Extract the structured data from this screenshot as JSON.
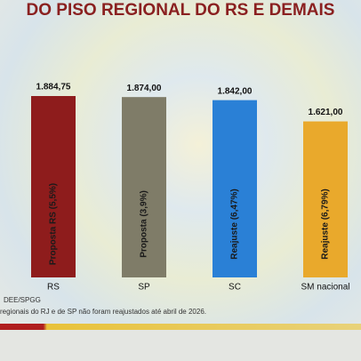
{
  "chart_data": {
    "type": "bar",
    "title": "DO PISO REGIONAL DO RS E DEMAIS",
    "categories": [
      "RS",
      "SP",
      "SC",
      "SM nacional"
    ],
    "values": [
      1884.75,
      1874.0,
      1842.0,
      1621.0
    ],
    "value_labels": [
      "1.884,75",
      "1.874,00",
      "1.842,00",
      "1.621,00"
    ],
    "bar_labels": [
      "Proposta RS (5,5%)",
      "Proposta (3,9%)",
      "Reajuste (6,47%)",
      "Reajuste (6,79%)"
    ],
    "colors": [
      "#8e1c1c",
      "#7f7c68",
      "#2a80d6",
      "#e9a92c"
    ],
    "source": "DEE/SPGG",
    "note": "regionais do RJ e de SP não foram reajustados até abril de 2026."
  }
}
